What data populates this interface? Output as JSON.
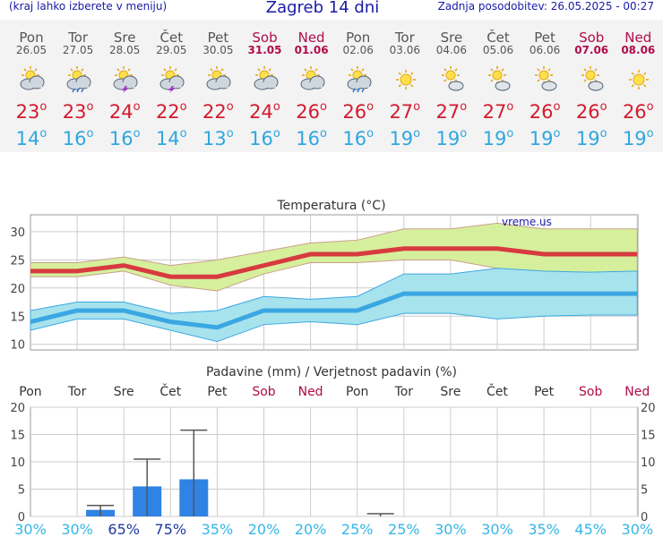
{
  "header": {
    "hint": "(kraj lahko izberete v meniju)",
    "title": "Zagreb 14 dni",
    "updated": "Zadnja posodobitev: 26.05.2025 - 00:27"
  },
  "colors": {
    "max_temp": "#d31a2e",
    "min_temp": "#2fa7df",
    "weekend": "#b00c4a",
    "weekday": "#555555",
    "title": "#1a1aa6"
  },
  "days": [
    {
      "name": "Pon",
      "date": "26.05",
      "weekend": false,
      "icon": "partly-cloudy-icon",
      "max": "23",
      "min": "14"
    },
    {
      "name": "Tor",
      "date": "27.05",
      "weekend": false,
      "icon": "sun-cloud-rain-icon",
      "max": "23",
      "min": "16"
    },
    {
      "name": "Sre",
      "date": "28.05",
      "weekend": false,
      "icon": "sun-cloud-thunder-icon",
      "max": "24",
      "min": "16"
    },
    {
      "name": "Čet",
      "date": "29.05",
      "weekend": false,
      "icon": "sun-cloud-thunder-icon",
      "max": "22",
      "min": "14"
    },
    {
      "name": "Pet",
      "date": "30.05",
      "weekend": false,
      "icon": "partly-cloudy-icon",
      "max": "22",
      "min": "13"
    },
    {
      "name": "Sob",
      "date": "31.05",
      "weekend": true,
      "icon": "partly-cloudy-icon",
      "max": "24",
      "min": "16"
    },
    {
      "name": "Ned",
      "date": "01.06",
      "weekend": true,
      "icon": "partly-cloudy-icon",
      "max": "26",
      "min": "16"
    },
    {
      "name": "Pon",
      "date": "02.06",
      "weekend": false,
      "icon": "sun-cloud-rain-icon",
      "max": "26",
      "min": "16"
    },
    {
      "name": "Tor",
      "date": "03.06",
      "weekend": false,
      "icon": "sun-icon",
      "max": "27",
      "min": "19"
    },
    {
      "name": "Sre",
      "date": "04.06",
      "weekend": false,
      "icon": "sun-small-cloud-icon",
      "max": "27",
      "min": "19"
    },
    {
      "name": "Čet",
      "date": "05.06",
      "weekend": false,
      "icon": "sun-small-cloud-icon",
      "max": "27",
      "min": "19"
    },
    {
      "name": "Pet",
      "date": "06.06",
      "weekend": false,
      "icon": "sun-small-cloud-icon",
      "max": "26",
      "min": "19"
    },
    {
      "name": "Sob",
      "date": "07.06",
      "weekend": true,
      "icon": "sun-small-cloud-icon",
      "max": "26",
      "min": "19"
    },
    {
      "name": "Ned",
      "date": "08.06",
      "weekend": true,
      "icon": "sun-icon",
      "max": "26",
      "min": "19"
    }
  ],
  "chart_data": [
    {
      "type": "line",
      "title": "Temperatura (°C)",
      "watermark": "vreme.us",
      "ylim": [
        9,
        33
      ],
      "yticks": [
        10,
        15,
        20,
        25,
        30
      ],
      "grid": true,
      "x": [
        "26.05",
        "27.05",
        "28.05",
        "29.05",
        "30.05",
        "31.05",
        "01.06",
        "02.06",
        "03.06",
        "04.06",
        "05.06",
        "06.06",
        "07.06",
        "08.06"
      ],
      "series": [
        {
          "values": [
            23,
            23,
            24,
            22,
            22,
            24,
            26,
            26,
            27,
            27,
            27,
            26,
            26,
            26
          ],
          "color": "#d73a3f",
          "band_low": [
            22,
            22,
            23,
            20.5,
            19.5,
            22.5,
            24.5,
            24.5,
            25,
            25,
            23.5,
            22.5,
            22.5,
            22.5
          ],
          "band_high": [
            24.5,
            24.5,
            25.5,
            24,
            25,
            26.5,
            28,
            28.5,
            30.5,
            30.5,
            31.5,
            30.5,
            30.5,
            30.5
          ],
          "band_color": "#d6ef9d"
        },
        {
          "values": [
            14,
            16,
            16,
            14,
            13,
            16,
            16,
            16,
            19,
            19,
            19,
            19,
            19,
            19
          ],
          "color": "#3ba7e2",
          "band_low": [
            12.5,
            14.5,
            14.5,
            12.5,
            10.5,
            13.5,
            14,
            13.5,
            15.5,
            15.5,
            14.5,
            15,
            15.2,
            15.2
          ],
          "band_high": [
            16,
            17.5,
            17.5,
            15.5,
            16,
            18.5,
            18,
            18.5,
            22.5,
            22.5,
            23.5,
            23,
            22.8,
            23
          ],
          "band_color": "#a7e3ed"
        }
      ]
    },
    {
      "type": "bar",
      "title": "Padavine (mm) / Verjetnost padavin (%)",
      "ylim": [
        0,
        20
      ],
      "yticks": [
        0,
        5,
        10,
        15,
        20
      ],
      "grid": true,
      "categories": [
        "Pon",
        "Tor",
        "Sre",
        "Čet",
        "Pet",
        "Sob",
        "Ned",
        "Pon",
        "Tor",
        "Sre",
        "Čet",
        "Pet",
        "Sob",
        "Ned"
      ],
      "weekend": [
        false,
        false,
        false,
        false,
        false,
        true,
        true,
        false,
        false,
        false,
        false,
        false,
        true,
        true
      ],
      "values": [
        0,
        1.2,
        5.5,
        6.8,
        0,
        0,
        0,
        0,
        0,
        0,
        0,
        0,
        0,
        0
      ],
      "error_high": [
        0,
        2,
        10.5,
        15.8,
        0,
        0,
        0,
        0.5,
        0,
        0,
        0,
        0,
        0,
        0
      ],
      "probabilities": [
        "30%",
        "30%",
        "65%",
        "75%",
        "35%",
        "20%",
        "20%",
        "25%",
        "25%",
        "30%",
        "30%",
        "35%",
        "45%",
        "30%"
      ],
      "bar_color": "#2f83e4"
    }
  ]
}
